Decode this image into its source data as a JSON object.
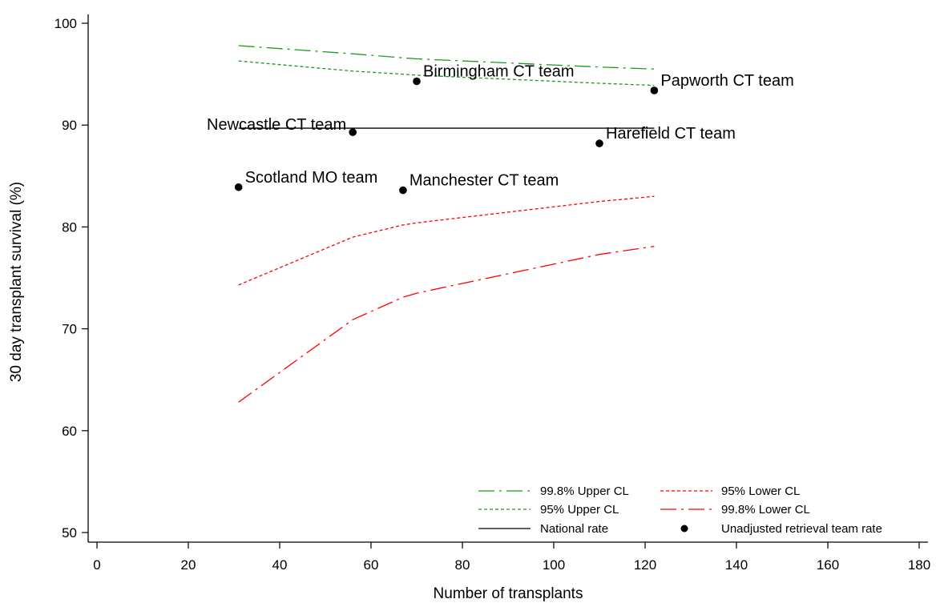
{
  "chart_data": {
    "type": "line",
    "title": "",
    "xlabel": "Number of transplants",
    "ylabel": "30 day transplant survival (%)",
    "xlim": [
      0,
      180
    ],
    "ylim": [
      50,
      100
    ],
    "xticks": [
      0,
      20,
      40,
      60,
      80,
      100,
      120,
      140,
      160,
      180
    ],
    "yticks": [
      50,
      60,
      70,
      80,
      90,
      100
    ],
    "grid": false,
    "legend_position": "bottom-right",
    "national_rate": {
      "name": "National rate",
      "x": [
        31,
        122
      ],
      "y": [
        89.7,
        89.7
      ],
      "color": "#000000"
    },
    "series": [
      {
        "name": "99.8% Upper CL",
        "style": "dashdot",
        "color": "#1a9c1a",
        "x": [
          31,
          56,
          67,
          70,
          110,
          122
        ],
        "y": [
          97.8,
          97.0,
          96.6,
          96.5,
          95.7,
          95.5
        ]
      },
      {
        "name": "95% Upper CL",
        "style": "dotted",
        "color": "#1a9c1a",
        "x": [
          31,
          56,
          67,
          70,
          110,
          122
        ],
        "y": [
          96.3,
          95.3,
          95.0,
          94.9,
          94.1,
          93.9
        ]
      },
      {
        "name": "95% Lower CL",
        "style": "dotted",
        "color": "#ff0000",
        "x": [
          31,
          56,
          67,
          70,
          110,
          122
        ],
        "y": [
          74.3,
          79.0,
          80.2,
          80.4,
          82.5,
          83.0
        ]
      },
      {
        "name": "99.8% Lower CL",
        "style": "dashdot",
        "color": "#ff0000",
        "x": [
          31,
          56,
          67,
          70,
          110,
          122
        ],
        "y": [
          62.8,
          70.9,
          73.1,
          73.5,
          77.3,
          78.1
        ]
      }
    ],
    "points": {
      "name": "Unadjusted retrieval team rate",
      "data": [
        {
          "label": "Scotland MO team",
          "x": 31,
          "y": 83.9
        },
        {
          "label": "Newcastle CT team",
          "x": 56,
          "y": 89.3
        },
        {
          "label": "Manchester CT team",
          "x": 67,
          "y": 83.6
        },
        {
          "label": "Birmingham CT team",
          "x": 70,
          "y": 94.3
        },
        {
          "label": "Harefield CT team",
          "x": 110,
          "y": 88.2
        },
        {
          "label": "Papworth CT team",
          "x": 122,
          "y": 93.4
        }
      ]
    }
  }
}
